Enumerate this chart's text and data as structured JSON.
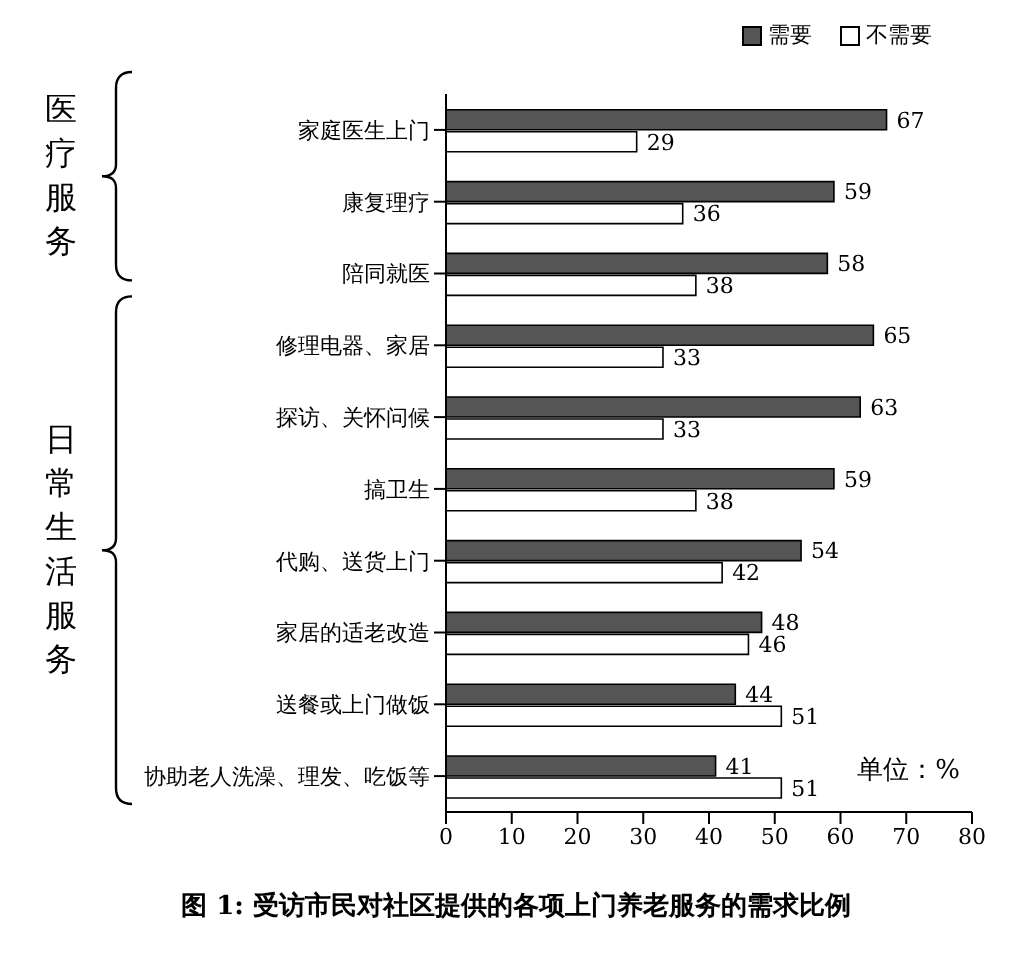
{
  "chart_data": {
    "type": "bar",
    "orientation": "horizontal",
    "title": "图 1: 受访市民对社区提供的各项上门养老服务的需求比例",
    "categories": [
      "家庭医生上门",
      "康复理疗",
      "陪同就医",
      "修理电器、家居",
      "探访、关怀问候",
      "搞卫生",
      "代购、送货上门",
      "家居的适老改造",
      "送餐或上门做饭",
      "协助老人洗澡、理发、吃饭等"
    ],
    "series": [
      {
        "name": "需要",
        "color": "#555555",
        "values": [
          67,
          59,
          58,
          65,
          63,
          59,
          54,
          48,
          44,
          41
        ]
      },
      {
        "name": "不需要",
        "color": "#ffffff",
        "values": [
          29,
          36,
          38,
          33,
          33,
          38,
          42,
          46,
          51,
          51
        ]
      }
    ],
    "xlim": [
      0,
      80
    ],
    "xticks": [
      0,
      10,
      20,
      30,
      40,
      50,
      60,
      70,
      80
    ],
    "data_labels": true,
    "legend": "top right",
    "grid": false,
    "annotations": [
      "医疗服务",
      "日常生活服务",
      "单位：%"
    ]
  }
}
